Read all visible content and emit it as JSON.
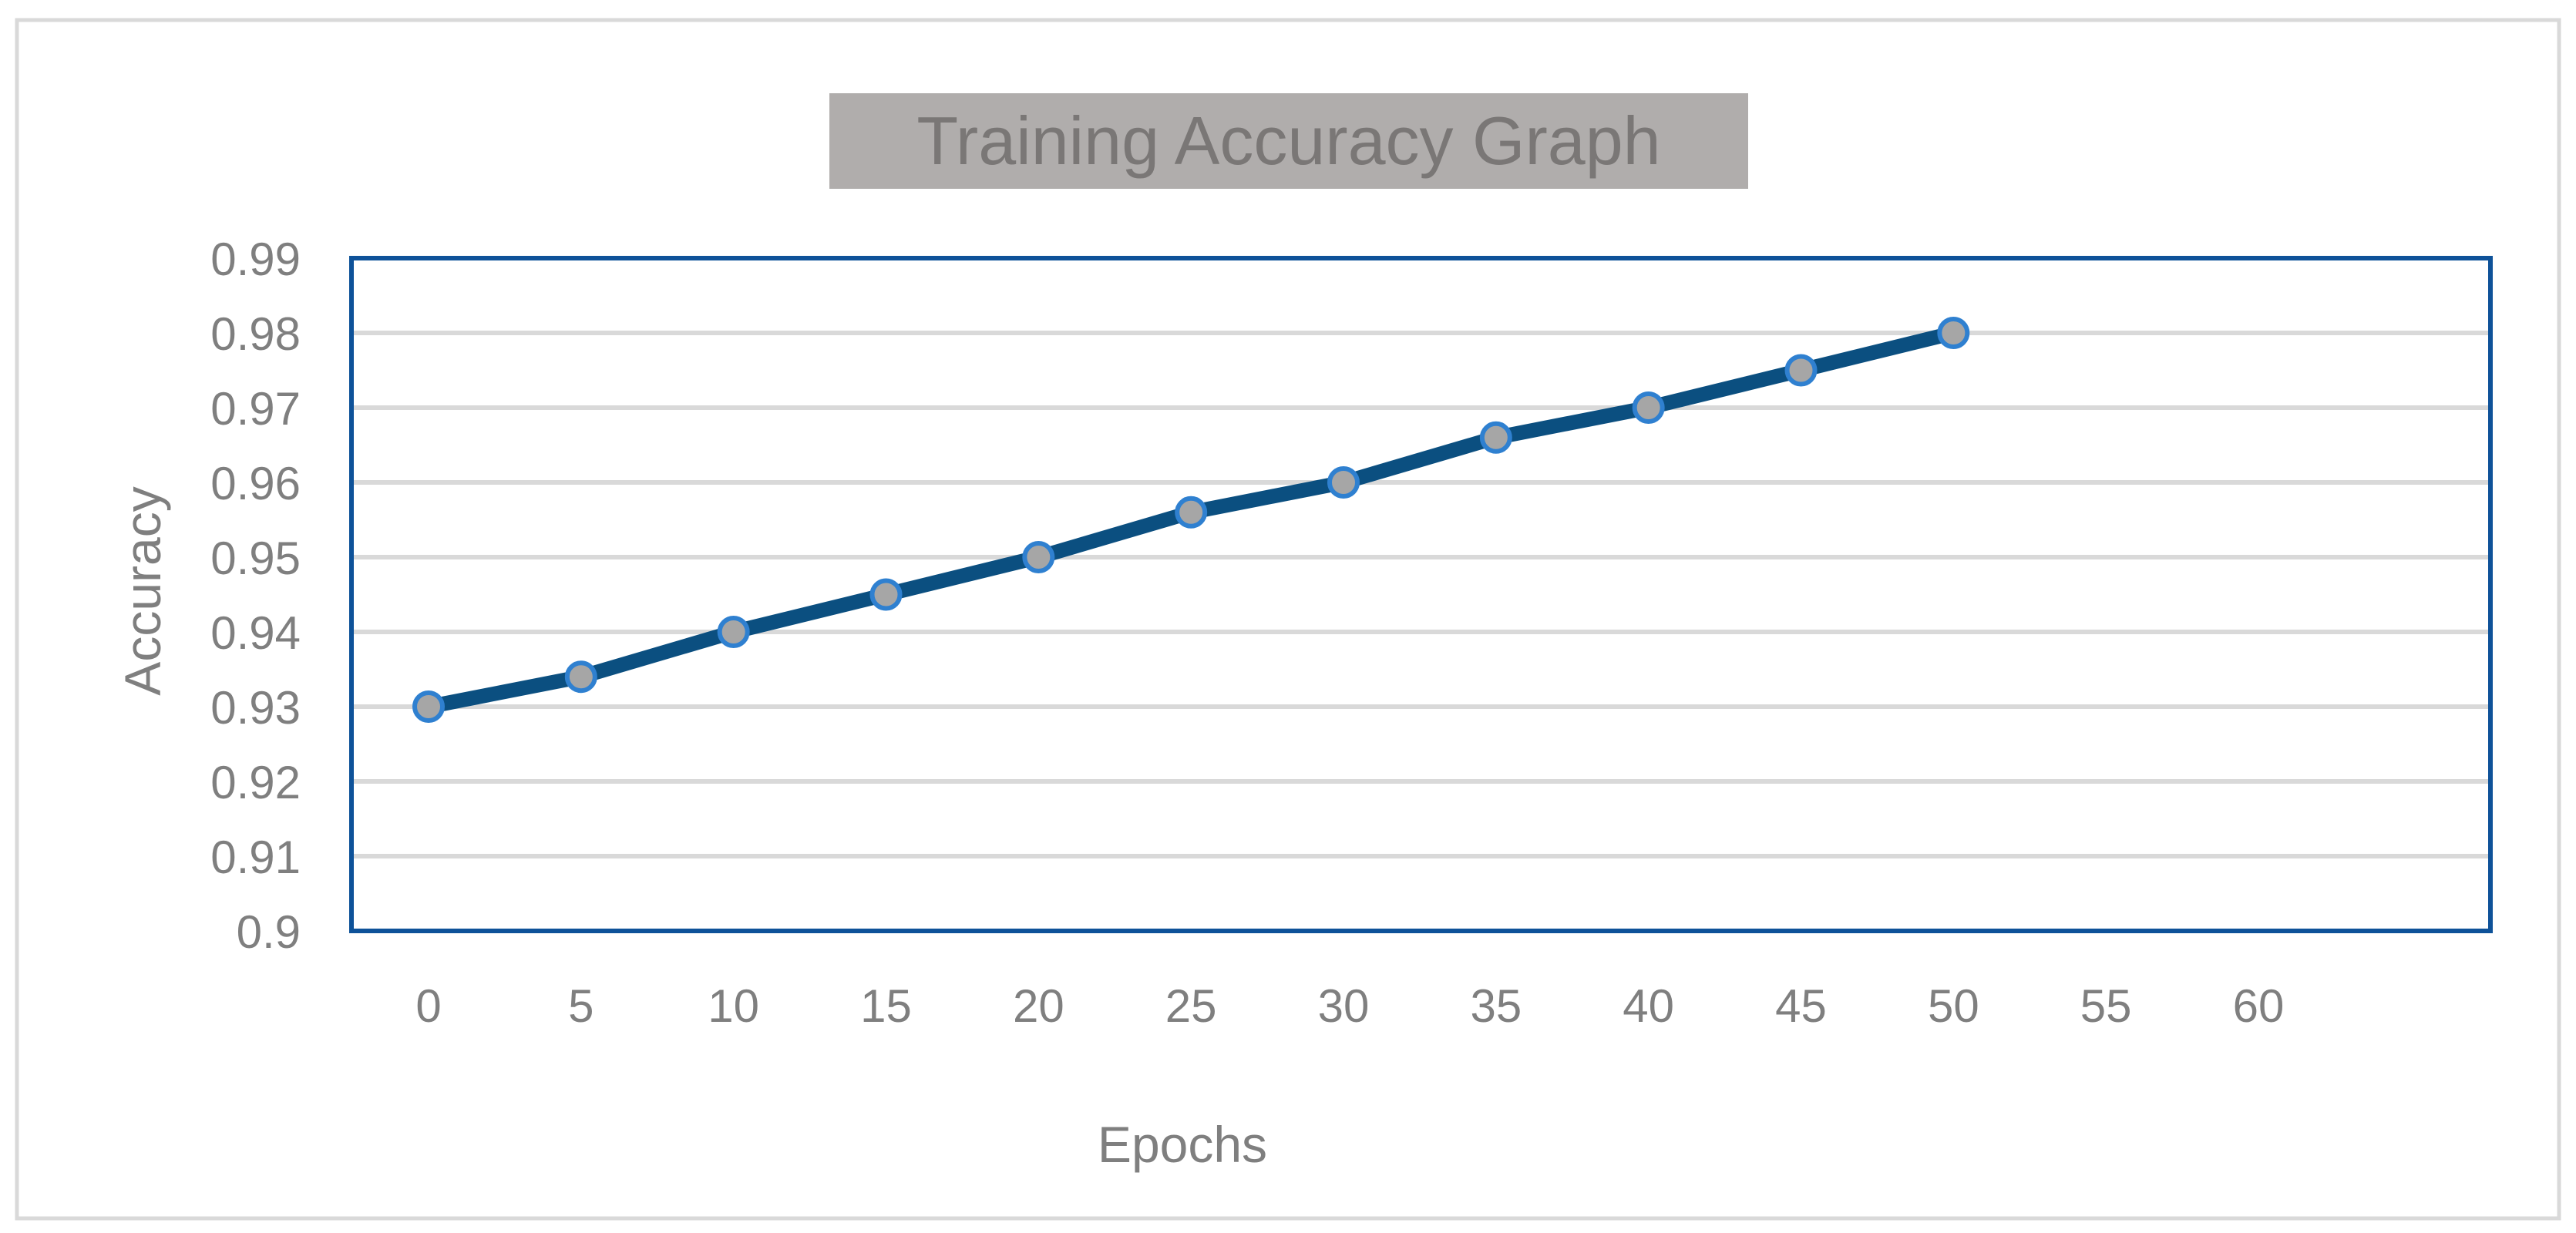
{
  "chart_data": {
    "type": "line",
    "title": "Training Accuracy Graph",
    "xlabel": "Epochs",
    "ylabel": "Accuracy",
    "x_ticks": [
      "0",
      "5",
      "10",
      "15",
      "20",
      "25",
      "30",
      "35",
      "40",
      "45",
      "50",
      "55",
      "60"
    ],
    "y_ticks": [
      "0.9",
      "0.91",
      "0.92",
      "0.93",
      "0.94",
      "0.95",
      "0.96",
      "0.97",
      "0.98",
      "0.99"
    ],
    "xlim": [
      0,
      60
    ],
    "ylim": [
      0.9,
      0.99
    ],
    "grid": true,
    "legend": "none",
    "series": [
      {
        "name": "Accuracy",
        "x": [
          0,
          5,
          10,
          15,
          20,
          25,
          30,
          35,
          40,
          45,
          50
        ],
        "values": [
          0.93,
          0.934,
          0.94,
          0.945,
          0.95,
          0.956,
          0.96,
          0.966,
          0.97,
          0.975,
          0.98
        ]
      }
    ],
    "colors": {
      "line": "#0b4f80",
      "marker_fill": "#a6a6a6",
      "marker_stroke": "#2f80d0",
      "plot_border": "#0e5299",
      "grid": "#d9d9d9",
      "title_bg": "#b0adac"
    }
  }
}
